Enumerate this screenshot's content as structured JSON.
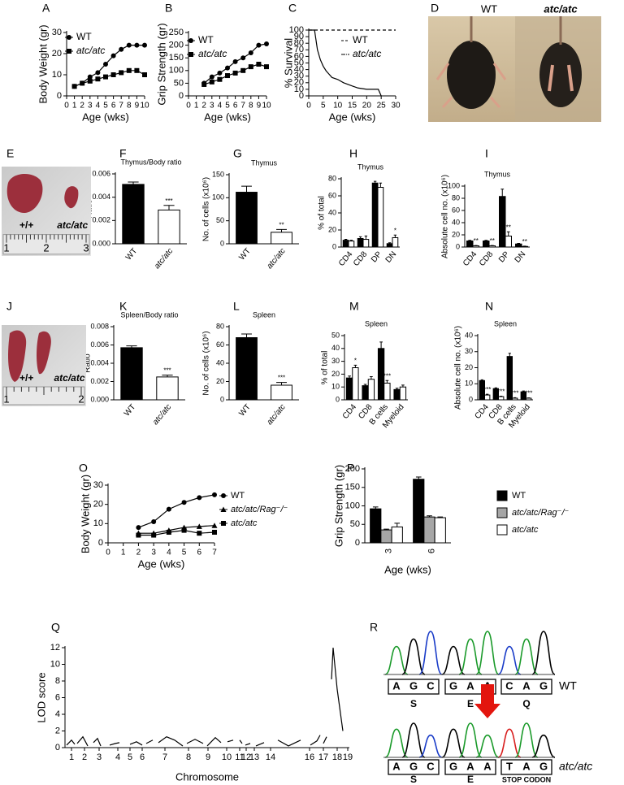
{
  "chart_data": [
    {
      "panel": "A",
      "type": "line",
      "ylabel": "Body Weight (gr)",
      "xlabel": "Age (wks)",
      "xlim": [
        0,
        10
      ],
      "xticks": [
        0,
        1,
        2,
        3,
        4,
        5,
        6,
        7,
        8,
        9,
        10
      ],
      "ylim": [
        0,
        30
      ],
      "yticks": [
        0,
        10,
        20,
        30
      ],
      "series": [
        {
          "name": "WT",
          "color": "#000000",
          "marker": "circle",
          "x": [
            1,
            2,
            3,
            4,
            5,
            6,
            7,
            8,
            9,
            10
          ],
          "values": [
            4.5,
            6,
            9,
            11,
            15,
            19,
            22,
            24,
            24,
            24
          ]
        },
        {
          "name": "atc/atc",
          "color": "#000000",
          "marker": "square",
          "x": [
            1,
            2,
            3,
            4,
            5,
            6,
            7,
            8,
            9,
            10
          ],
          "values": [
            4.5,
            6,
            7,
            8,
            9,
            10,
            11,
            12,
            12,
            10
          ]
        }
      ]
    },
    {
      "panel": "B",
      "type": "line",
      "ylabel": "Grip Strength (gr)",
      "xlabel": "Age (wks)",
      "xlim": [
        0,
        10
      ],
      "xticks": [
        0,
        1,
        2,
        3,
        4,
        5,
        6,
        7,
        8,
        9,
        10
      ],
      "ylim": [
        0,
        250
      ],
      "yticks": [
        0,
        50,
        100,
        150,
        200,
        250
      ],
      "series": [
        {
          "name": "WT",
          "color": "#000000",
          "marker": "circle",
          "x": [
            2,
            3,
            4,
            5,
            6,
            7,
            8,
            9,
            10
          ],
          "values": [
            50,
            75,
            90,
            110,
            135,
            150,
            170,
            200,
            205
          ]
        },
        {
          "name": "atc/atc",
          "color": "#000000",
          "marker": "square",
          "x": [
            2,
            3,
            4,
            5,
            6,
            7,
            8,
            9,
            10
          ],
          "values": [
            45,
            55,
            65,
            80,
            90,
            100,
            115,
            125,
            115
          ]
        }
      ]
    },
    {
      "panel": "C",
      "type": "line",
      "ylabel": "% Survival",
      "xlabel": "Age (wks)",
      "xlim": [
        0,
        30
      ],
      "xticks": [
        0,
        5,
        10,
        15,
        20,
        25,
        30
      ],
      "ylim": [
        0,
        100
      ],
      "yticks": [
        0,
        10,
        20,
        30,
        40,
        50,
        60,
        70,
        80,
        90,
        100
      ],
      "series": [
        {
          "name": "WT",
          "color": "#000000",
          "marker": "none",
          "dashed": true,
          "x": [
            0,
            30
          ],
          "values": [
            100,
            100
          ]
        },
        {
          "name": "atc/atc",
          "color": "#000000",
          "marker": "none",
          "x": [
            0,
            2,
            3,
            4,
            5,
            6,
            7,
            8,
            10,
            12,
            15,
            17,
            20,
            22,
            24,
            25
          ],
          "values": [
            100,
            100,
            70,
            55,
            45,
            38,
            33,
            28,
            25,
            20,
            15,
            12,
            10,
            10,
            10,
            0
          ]
        }
      ]
    },
    {
      "panel": "F",
      "type": "bar",
      "title": "Thymus/Body ratio",
      "ylabel": "Ratio",
      "categories": [
        "WT",
        "atc/atc"
      ],
      "values": [
        0.0051,
        0.0029
      ],
      "errors": [
        0.0002,
        0.0004
      ],
      "colors": [
        "#000000",
        "#ffffff"
      ],
      "sig": [
        null,
        "***"
      ],
      "ylim": [
        0,
        0.006
      ],
      "yticks": [
        {
          "value": 0,
          "label": "0.000"
        },
        0.002,
        0.004,
        0.006
      ]
    },
    {
      "panel": "G",
      "type": "bar",
      "title": "Thymus",
      "ylabel": "No. of cells (x10⁶)",
      "categories": [
        "WT",
        "atc/atc"
      ],
      "values": [
        112,
        25
      ],
      "errors": [
        13,
        6
      ],
      "colors": [
        "#000000",
        "#ffffff"
      ],
      "sig": [
        null,
        "**"
      ],
      "ylim": [
        0,
        150
      ],
      "yticks": [
        0,
        50,
        100,
        150
      ]
    },
    {
      "panel": "H",
      "type": "grouped_bar",
      "title": "Thymus",
      "ylabel": "% of total",
      "categories": [
        "CD4",
        "CD8",
        "DP",
        "DN"
      ],
      "sig": [
        null,
        null,
        null,
        "*"
      ],
      "series": [
        {
          "name": "WT",
          "color": "#000000",
          "values": [
            8,
            10,
            75,
            4
          ],
          "errors": [
            1,
            2,
            2,
            1
          ]
        },
        {
          "name": "atc/atc",
          "color": "#ffffff",
          "values": [
            7,
            9,
            70,
            11
          ],
          "errors": [
            1,
            4,
            5,
            3
          ]
        }
      ],
      "ylim": [
        0,
        80
      ],
      "yticks": [
        0,
        20,
        40,
        60,
        80
      ]
    },
    {
      "panel": "I",
      "type": "grouped_bar",
      "title": "Thymus",
      "ylabel": "Absolute cell no. (x10⁶)",
      "categories": [
        "CD4",
        "CD8",
        "DP",
        "DN"
      ],
      "sig": [
        "**",
        "**",
        "**",
        "**"
      ],
      "series": [
        {
          "name": "WT",
          "color": "#000000",
          "values": [
            10,
            10,
            83,
            5
          ],
          "errors": [
            1,
            1,
            12,
            1
          ]
        },
        {
          "name": "atc/atc",
          "color": "#ffffff",
          "values": [
            2,
            2,
            18,
            1
          ],
          "errors": [
            0.5,
            0.5,
            7,
            0.5
          ]
        }
      ],
      "ylim": [
        0,
        100
      ],
      "yticks": [
        0,
        20,
        40,
        60,
        80,
        100
      ]
    },
    {
      "panel": "K",
      "type": "bar",
      "title": "Spleen/Body ratio",
      "ylabel": "Ratio",
      "categories": [
        "WT",
        "atc/atc"
      ],
      "values": [
        0.0057,
        0.0025
      ],
      "errors": [
        0.0002,
        0.0002
      ],
      "colors": [
        "#000000",
        "#ffffff"
      ],
      "sig": [
        null,
        "***"
      ],
      "ylim": [
        0,
        0.008
      ],
      "yticks": [
        {
          "value": 0,
          "label": "0.000"
        },
        0.002,
        0.004,
        0.006,
        0.008
      ]
    },
    {
      "panel": "L",
      "type": "bar",
      "title": "Spleen",
      "ylabel": "No. of cells (x10⁶)",
      "categories": [
        "WT",
        "atc/atc"
      ],
      "values": [
        68,
        16
      ],
      "errors": [
        4,
        3
      ],
      "colors": [
        "#000000",
        "#ffffff"
      ],
      "sig": [
        null,
        "***"
      ],
      "ylim": [
        0,
        80
      ],
      "yticks": [
        0,
        20,
        40,
        60,
        80
      ]
    },
    {
      "panel": "M",
      "type": "grouped_bar",
      "title": "Spleen",
      "ylabel": "% of total",
      "categories": [
        "CD4",
        "CD8",
        "B cells",
        "Myeloid"
      ],
      "sig": [
        "*",
        null,
        "***",
        null
      ],
      "series": [
        {
          "name": "WT",
          "color": "#000000",
          "values": [
            17,
            11,
            40,
            8
          ],
          "errors": [
            1.5,
            1,
            5,
            1
          ]
        },
        {
          "name": "atc/atc",
          "color": "#ffffff",
          "values": [
            25,
            16,
            13,
            10
          ],
          "errors": [
            2,
            2,
            2,
            1.5
          ]
        }
      ],
      "ylim": [
        0,
        50
      ],
      "yticks": [
        0,
        10,
        20,
        30,
        40,
        50
      ]
    },
    {
      "panel": "N",
      "type": "grouped_bar",
      "title": "Spleen",
      "ylabel": "Absolute cell no. (x10⁶)",
      "categories": [
        "CD4",
        "CD8",
        "B cells",
        "Myeloid"
      ],
      "sig": [
        "***",
        "***",
        "***",
        "***"
      ],
      "series": [
        {
          "name": "WT",
          "color": "#000000",
          "values": [
            12,
            7,
            27,
            5
          ],
          "errors": [
            0.5,
            0.5,
            2,
            0.5
          ]
        },
        {
          "name": "atc/atc",
          "color": "#ffffff",
          "values": [
            3,
            2,
            1,
            1
          ],
          "errors": [
            0.5,
            0.3,
            0.3,
            0.2
          ]
        }
      ],
      "ylim": [
        0,
        40
      ],
      "yticks": [
        0,
        10,
        20,
        30,
        40
      ]
    },
    {
      "panel": "O",
      "type": "line",
      "ylabel": "Body Weight (gr)",
      "xlabel": "Age (wks)",
      "xlim": [
        0,
        7
      ],
      "xticks": [
        0,
        1,
        2,
        3,
        4,
        5,
        6,
        7
      ],
      "ylim": [
        0,
        30
      ],
      "yticks": [
        0,
        10,
        20,
        30
      ],
      "series": [
        {
          "name": "WT",
          "color": "#000000",
          "marker": "circle",
          "x": [
            2,
            3,
            4,
            5,
            6,
            7
          ],
          "values": [
            8,
            11,
            17.5,
            21,
            23.5,
            25
          ]
        },
        {
          "name": "atc/atc/Rag⁻/⁻",
          "color": "#000000",
          "marker": "triangle",
          "x": [
            2,
            3,
            4,
            5,
            6,
            7
          ],
          "values": [
            5,
            5,
            6.5,
            8,
            8.5,
            9
          ]
        },
        {
          "name": "atc/atc",
          "color": "#000000",
          "marker": "square",
          "x": [
            2,
            3,
            4,
            5,
            6,
            7
          ],
          "values": [
            4,
            4,
            5.5,
            6.5,
            5,
            5.5
          ]
        }
      ]
    },
    {
      "panel": "P",
      "type": "grouped_bar",
      "ylabel": "Grip Strength (gr)",
      "xlabel": "Age (wks)",
      "categories": [
        "3",
        "6"
      ],
      "series": [
        {
          "name": "WT",
          "color": "#000000",
          "values": [
            92,
            172
          ],
          "errors": [
            5,
            6
          ]
        },
        {
          "name": "atc/atc/Rag⁻/⁻",
          "color": "#a6a6a6",
          "values": [
            35,
            70
          ],
          "errors": [
            2,
            3
          ]
        },
        {
          "name": "atc/atc",
          "color": "#ffffff",
          "values": [
            43,
            68
          ],
          "errors": [
            10,
            2
          ]
        }
      ],
      "ylim": [
        0,
        200
      ],
      "yticks": [
        0,
        50,
        100,
        150,
        200
      ]
    },
    {
      "panel": "Q",
      "type": "line",
      "ylabel": "LOD score",
      "xlabel": "Chromosome",
      "xlim": [
        0,
        350
      ],
      "ylim": [
        0,
        12
      ],
      "yticks": [
        0,
        2,
        4,
        6,
        8,
        10,
        12
      ],
      "xticks": [
        {
          "value": 8,
          "label": "1"
        },
        {
          "value": 24,
          "label": "2"
        },
        {
          "value": 42,
          "label": "3"
        },
        {
          "value": 65,
          "label": "4"
        },
        {
          "value": 80,
          "label": "5"
        },
        {
          "value": 95,
          "label": "6"
        },
        {
          "value": 123,
          "label": "7"
        },
        {
          "value": 152,
          "label": "8"
        },
        {
          "value": 176,
          "label": "9"
        },
        {
          "value": 199,
          "label": "10"
        },
        {
          "value": 215,
          "label": "11"
        },
        {
          "value": 223,
          "label": "12"
        },
        {
          "value": 233,
          "label": "13"
        },
        {
          "value": 253,
          "label": "14"
        },
        {
          "value": 301,
          "label": "16"
        },
        {
          "value": 318,
          "label": "17"
        },
        {
          "value": 335,
          "label": "18"
        },
        {
          "value": 348,
          "label": "19"
        }
      ],
      "series": [
        {
          "color": "#000000",
          "marker": "none",
          "x": [
            2,
            8,
            12,
            null,
            15,
            22,
            28,
            null,
            35,
            40,
            44,
            null,
            55,
            62,
            67,
            null,
            80,
            88,
            95,
            null,
            100,
            108,
            null,
            115,
            125,
            135,
            145,
            null,
            150,
            160,
            170,
            null,
            175,
            185,
            192,
            null,
            200,
            207,
            null,
            215,
            218,
            null,
            222,
            228,
            null,
            235,
            245,
            null,
            262,
            275,
            290,
            null,
            302,
            310,
            314,
            null,
            318,
            322,
            null,
            328,
            330,
            335,
            342
          ],
          "values": [
            0.3,
            0.9,
            0.4,
            null,
            0.5,
            1.3,
            0.2,
            null,
            0.6,
            1.1,
            0.2,
            null,
            0.3,
            0.5,
            0.6,
            null,
            0.4,
            0.7,
            0.3,
            null,
            0.5,
            0.9,
            null,
            0.6,
            1.3,
            0.9,
            0.2,
            null,
            0.5,
            1.0,
            0.5,
            null,
            0.2,
            1.2,
            0.6,
            null,
            0.7,
            0.9,
            null,
            0.9,
            0.5,
            null,
            0.3,
            0.5,
            null,
            0.2,
            0.6,
            null,
            0.9,
            0.2,
            0.9,
            null,
            0.3,
            0.8,
            1.5,
            null,
            0.5,
            1.3,
            null,
            8.2,
            12,
            7,
            2
          ]
        }
      ]
    }
  ],
  "photos": [
    {
      "panel": "D",
      "labels": [
        "WT",
        "atc/atc"
      ]
    },
    {
      "panel": "E",
      "labels": [
        "+/+",
        "atc/atc"
      ],
      "ruler": [
        "1",
        "2",
        "3"
      ]
    },
    {
      "panel": "J",
      "labels": [
        "+/+",
        "atc/atc"
      ],
      "ruler": [
        "1",
        "2"
      ]
    }
  ],
  "sequence": {
    "panel": "R",
    "rows": [
      {
        "bases": [
          "A",
          "G",
          "C",
          "G",
          "A",
          "A",
          "C",
          "A",
          "G"
        ],
        "codons": [
          "S",
          "E",
          "Q"
        ],
        "name": "WT"
      },
      {
        "bases": [
          "A",
          "G",
          "C",
          "G",
          "A",
          "A",
          "T",
          "A",
          "G"
        ],
        "codons": [
          "S",
          "E",
          "STOP CODON"
        ],
        "name": "atc/atc"
      }
    ]
  }
}
